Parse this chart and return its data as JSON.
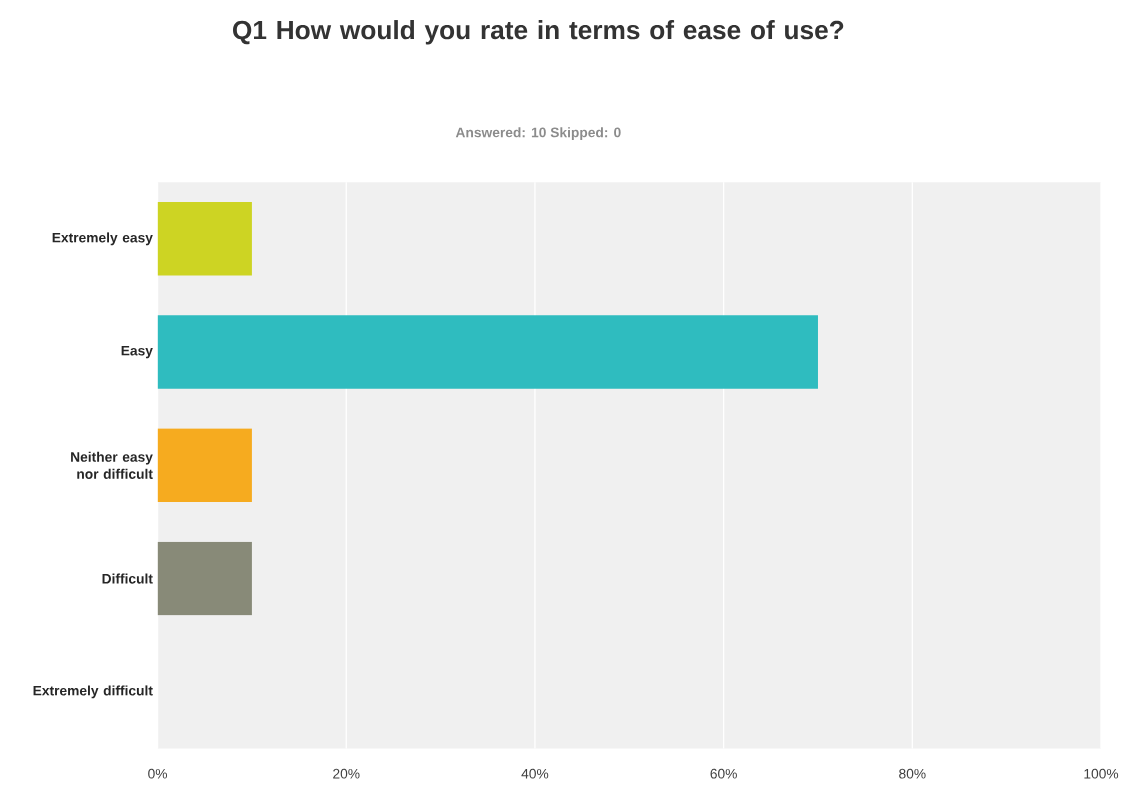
{
  "chart_data": {
    "type": "bar",
    "orientation": "horizontal",
    "title": "Q1 How would you rate in terms of ease of use?",
    "subtitle": "Answered: 10    Skipped: 0",
    "categories": [
      "Extremely easy",
      "Easy",
      "Neither easy nor difficult",
      "Difficult",
      "Extremely difficult"
    ],
    "values": [
      10,
      70,
      10,
      10,
      0
    ],
    "colors": [
      "#cdd423",
      "#2fbcbf",
      "#f6ab1f",
      "#888a78",
      "#5c94b8"
    ],
    "xlim": [
      0,
      100
    ],
    "xticks": [
      {
        "value": 0,
        "label": "0%"
      },
      {
        "value": 20,
        "label": "20%"
      },
      {
        "value": 40,
        "label": "40%"
      },
      {
        "value": 60,
        "label": "60%"
      },
      {
        "value": 80,
        "label": "80%"
      },
      {
        "value": 100,
        "label": "100%"
      }
    ],
    "grid": "x"
  }
}
